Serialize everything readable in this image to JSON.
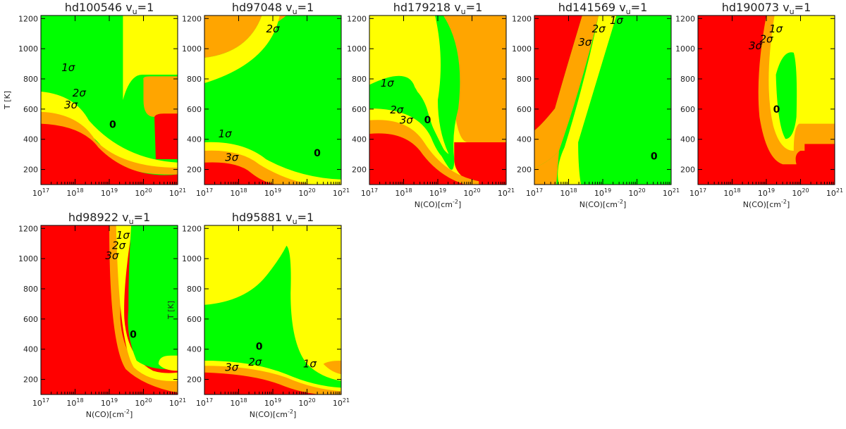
{
  "figure": {
    "colors": {
      "red": "#ff0000",
      "orange": "#ffa500",
      "yellow": "#ffff00",
      "green": "#00ff00",
      "line": "#000000"
    }
  },
  "chart_data": [
    {
      "type": "heatmap",
      "title": "hd100546",
      "title_suffix": "v",
      "title_sub": "u",
      "title_eq": "=1",
      "ylabel": "T [K]",
      "xlabel": "",
      "xscale": "log",
      "xlim": [
        1e+17,
        1e+21
      ],
      "ylim": [
        100,
        1220
      ],
      "yticks": [
        200,
        400,
        600,
        800,
        1000,
        1200
      ],
      "xticks": [
        "10^17",
        "10^18",
        "10^19",
        "10^20",
        "10^21"
      ],
      "contour_labels": [
        "1σ",
        "2σ",
        "3σ"
      ],
      "best_fit": {
        "log_N": 19.1,
        "T": 500,
        "label": "0"
      }
    },
    {
      "type": "heatmap",
      "title": "hd97048",
      "title_suffix": "v",
      "title_sub": "u",
      "title_eq": "=1",
      "ylabel": "",
      "xlabel": "",
      "xscale": "log",
      "xlim": [
        1e+17,
        1e+21
      ],
      "ylim": [
        100,
        1220
      ],
      "yticks": [
        200,
        400,
        600,
        800,
        1000,
        1200
      ],
      "xticks": [
        "10^17",
        "10^18",
        "10^19",
        "10^20",
        "10^21"
      ],
      "contour_labels": [
        "1σ",
        "2σ",
        "3σ"
      ],
      "best_fit": {
        "log_N": 20.3,
        "T": 310,
        "label": "0"
      }
    },
    {
      "type": "heatmap",
      "title": "hd179218",
      "title_suffix": "v",
      "title_sub": "u",
      "title_eq": "=1",
      "ylabel": "",
      "xlabel": "N(CO)[cm^-2]",
      "xscale": "log",
      "xlim": [
        1e+17,
        1e+21
      ],
      "ylim": [
        100,
        1220
      ],
      "yticks": [
        200,
        400,
        600,
        800,
        1000,
        1200
      ],
      "xticks": [
        "10^17",
        "10^18",
        "10^19",
        "10^20",
        "10^21"
      ],
      "contour_labels": [
        "1σ",
        "2σ",
        "3σ"
      ],
      "best_fit": {
        "log_N": 18.7,
        "T": 530,
        "label": "0"
      }
    },
    {
      "type": "heatmap",
      "title": "hd141569",
      "title_suffix": "v",
      "title_sub": "u",
      "title_eq": "=1",
      "ylabel": "",
      "xlabel": "N(CO)[cm^-2]",
      "xscale": "log",
      "xlim": [
        1e+17,
        1e+21
      ],
      "ylim": [
        100,
        1220
      ],
      "yticks": [
        200,
        400,
        600,
        800,
        1000,
        1200
      ],
      "xticks": [
        "10^17",
        "10^18",
        "10^19",
        "10^20",
        "10^21"
      ],
      "contour_labels": [
        "1σ",
        "2σ",
        "3σ"
      ],
      "best_fit": {
        "log_N": 20.5,
        "T": 290,
        "label": "0"
      }
    },
    {
      "type": "heatmap",
      "title": "hd190073",
      "title_suffix": "v",
      "title_sub": "u",
      "title_eq": "=1",
      "ylabel": "",
      "xlabel": "N(CO)[cm^-2]",
      "xscale": "log",
      "xlim": [
        1e+17,
        1e+21
      ],
      "ylim": [
        100,
        1220
      ],
      "yticks": [
        200,
        400,
        600,
        800,
        1000,
        1200
      ],
      "xticks": [
        "10^17",
        "10^18",
        "10^19",
        "10^20",
        "10^21"
      ],
      "contour_labels": [
        "1σ",
        "2σ",
        "3σ"
      ],
      "best_fit": {
        "log_N": 19.3,
        "T": 600,
        "label": "0"
      }
    },
    {
      "type": "heatmap",
      "title": "hd98922",
      "title_suffix": "v",
      "title_sub": "u",
      "title_eq": "=1",
      "ylabel": "",
      "xlabel": "N(CO)[cm^-2]",
      "xscale": "log",
      "xlim": [
        1e+17,
        1e+21
      ],
      "ylim": [
        100,
        1220
      ],
      "yticks": [
        200,
        400,
        600,
        800,
        1000,
        1200
      ],
      "xticks": [
        "10^17",
        "10^18",
        "10^19",
        "10^20",
        "10^21"
      ],
      "contour_labels": [
        "1σ",
        "2σ",
        "3σ"
      ],
      "best_fit": {
        "log_N": 19.7,
        "T": 500,
        "label": "0"
      }
    },
    {
      "type": "heatmap",
      "title": "hd95881",
      "title_suffix": "v",
      "title_sub": "u",
      "title_eq": "=1",
      "ylabel": "T [K]",
      "xlabel": "N(CO)[cm^-2]",
      "xscale": "log",
      "xlim": [
        1e+17,
        1e+21
      ],
      "ylim": [
        100,
        1220
      ],
      "yticks": [
        200,
        400,
        600,
        800,
        1000,
        1200
      ],
      "xticks": [
        "10^17",
        "10^18",
        "10^19",
        "10^20",
        "10^21"
      ],
      "contour_labels": [
        "1σ",
        "2σ",
        "3σ"
      ],
      "best_fit": {
        "log_N": 18.6,
        "T": 420,
        "label": "0"
      }
    }
  ]
}
